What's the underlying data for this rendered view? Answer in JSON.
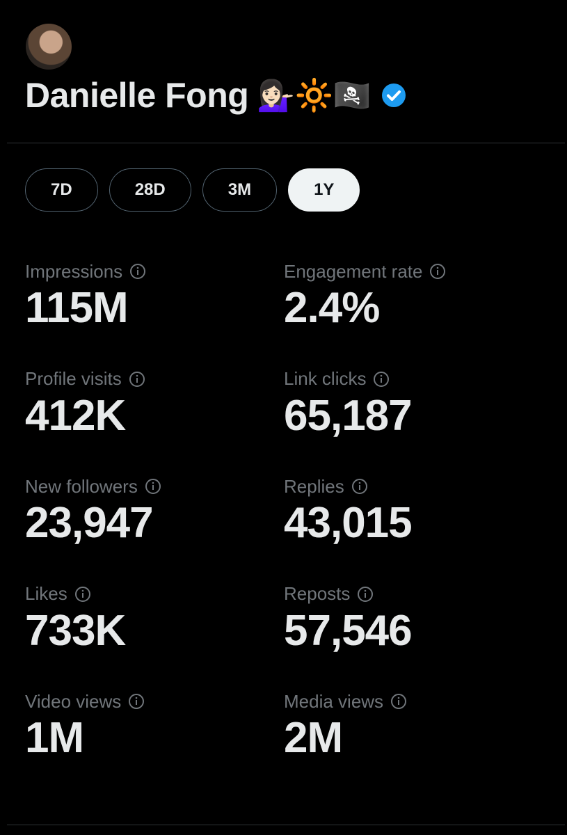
{
  "profile": {
    "name": "Danielle Fong",
    "emoji": "💁🏻‍♀️🔆🏴‍☠️"
  },
  "tabs": [
    "7D",
    "28D",
    "3M",
    "1Y"
  ],
  "selected_tab_index": 3,
  "metrics": [
    {
      "label": "Impressions",
      "value": "115M"
    },
    {
      "label": "Engagement rate",
      "value": "2.4%"
    },
    {
      "label": "Profile visits",
      "value": "412K"
    },
    {
      "label": "Link clicks",
      "value": "65,187"
    },
    {
      "label": "New followers",
      "value": "23,947"
    },
    {
      "label": "Replies",
      "value": "43,015"
    },
    {
      "label": "Likes",
      "value": "733K"
    },
    {
      "label": "Reposts",
      "value": "57,546"
    },
    {
      "label": "Video views",
      "value": "1M"
    },
    {
      "label": "Media views",
      "value": "2M"
    }
  ]
}
